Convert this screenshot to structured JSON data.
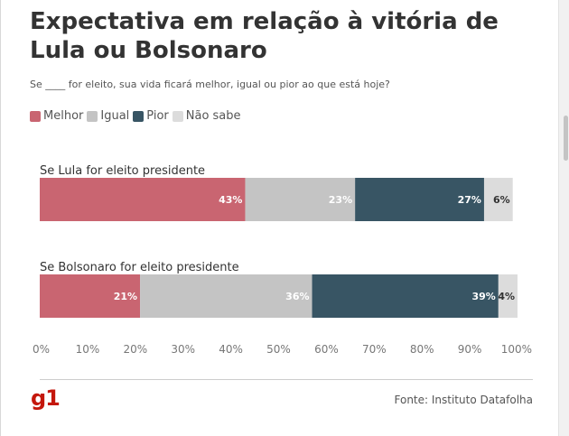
{
  "title": "Expectativa em relação à vitória de Lula ou Bolsonaro",
  "subtitle": "Se ____ for eleito, sua vida ficará melhor, igual ou pior ao que está hoje?",
  "legend": [
    {
      "label": "Melhor",
      "color": "#c96571"
    },
    {
      "label": "Igual",
      "color": "#c4c4c4"
    },
    {
      "label": "Pior",
      "color": "#385564"
    },
    {
      "label": "Não sabe",
      "color": "#dcdcdc"
    }
  ],
  "logo": "g1",
  "source": "Fonte: Instituto Datafolha",
  "chart_data": {
    "type": "bar",
    "stacked": true,
    "orientation": "horizontal",
    "categories": [
      "Se Lula for eleito presidente",
      "Se Bolsonaro for eleito presidente"
    ],
    "series": [
      {
        "name": "Melhor",
        "values": [
          43,
          21
        ],
        "labels": [
          "43%",
          "21%"
        ],
        "color": "#c96571",
        "label_color": "#ffffff"
      },
      {
        "name": "Igual",
        "values": [
          23,
          36
        ],
        "labels": [
          "23%",
          "36%"
        ],
        "color": "#c4c4c4",
        "label_color": "#ffffff"
      },
      {
        "name": "Pior",
        "values": [
          27,
          39
        ],
        "labels": [
          "27%",
          "39%"
        ],
        "color": "#385564",
        "label_color": "#ffffff"
      },
      {
        "name": "Não sabe",
        "values": [
          6,
          4
        ],
        "labels": [
          "6%",
          "4%"
        ],
        "color": "#dcdcdc",
        "label_color": "#333333"
      }
    ],
    "xlim": [
      0,
      100
    ],
    "ticks": [
      "0%",
      "10%",
      "20%",
      "30%",
      "40%",
      "50%",
      "60%",
      "70%",
      "80%",
      "90%",
      "100%"
    ],
    "grid": false
  }
}
